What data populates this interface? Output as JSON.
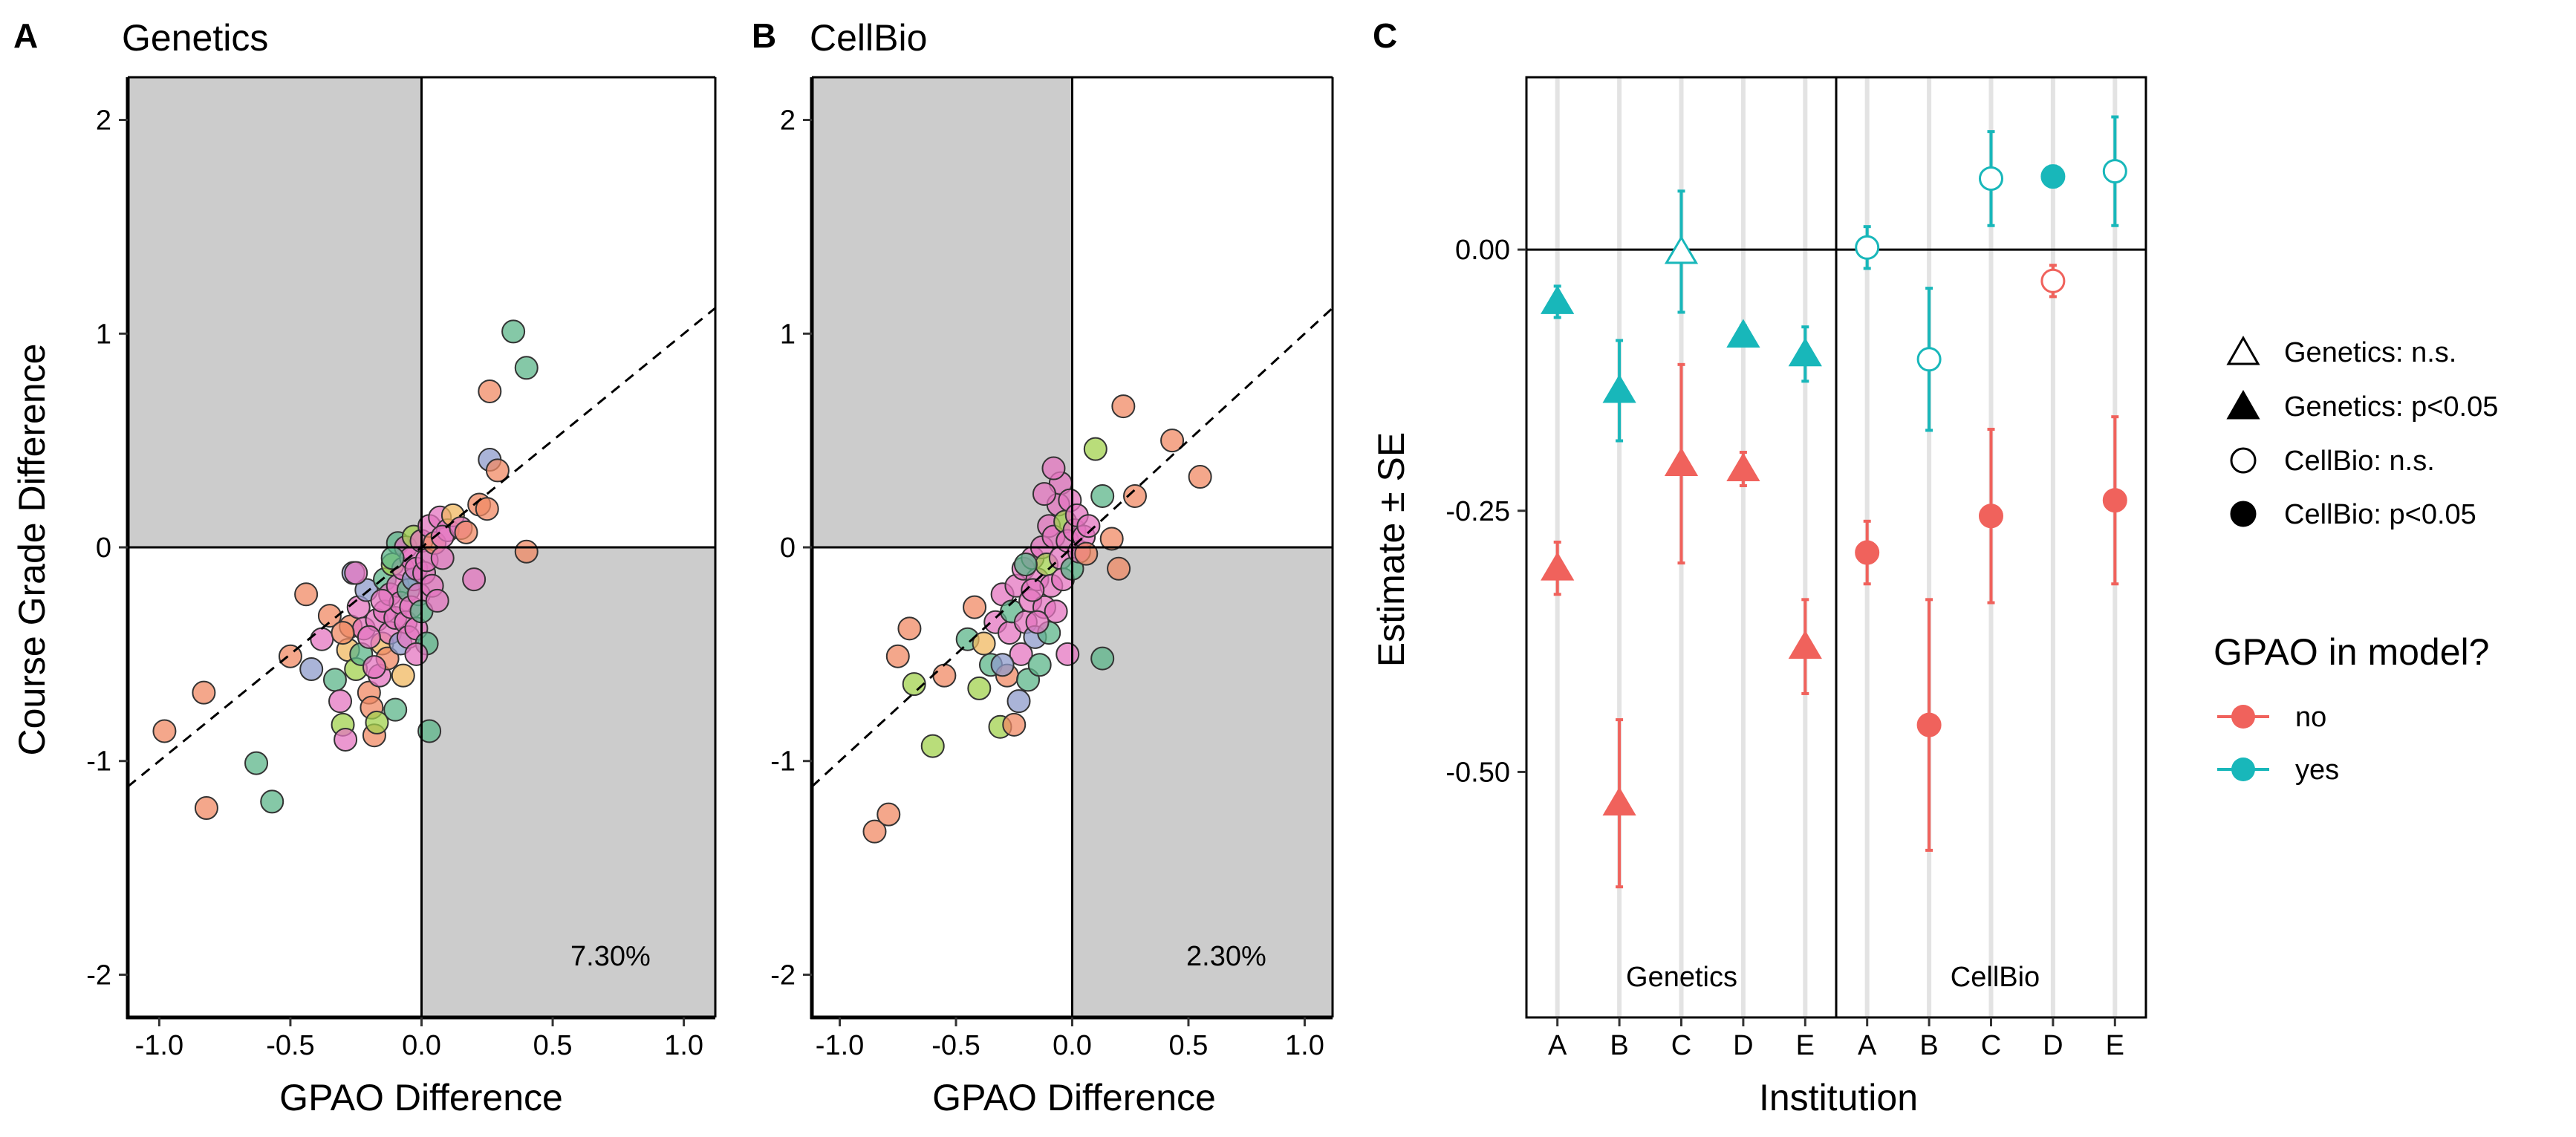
{
  "colors": {
    "no": "#F0625C",
    "yes": "#18B7BA",
    "quadrant_fill": "#CCCCCC",
    "gridline": "#E3E3E3",
    "point_palette": [
      "#F08A64",
      "#5CB68A",
      "#8E9BCB",
      "#E476C0",
      "#A2D14E",
      "#F0B860"
    ]
  },
  "chart_data": [
    {
      "type": "scatter",
      "panel_letter": "A",
      "title": "Genetics",
      "xlabel": "GPAO Difference",
      "ylabel": "Course Grade Difference",
      "xlim": [
        -1.12,
        1.12
      ],
      "ylim": [
        -2.2,
        2.2
      ],
      "x_ticks": [
        -1.0,
        -0.5,
        0.0,
        0.5,
        1.0
      ],
      "x_tick_labels": [
        "-1.0",
        "-0.5",
        "0.0",
        "0.5",
        "1.0"
      ],
      "y_ticks": [
        -2,
        -1,
        0,
        1,
        2
      ],
      "y_tick_labels": [
        "-2",
        "-1",
        "0",
        "1",
        "2"
      ],
      "shaded_quadrants": [
        "upper-left",
        "lower-right"
      ],
      "reference_line": {
        "slope": 1,
        "intercept": 0,
        "style": "dashed"
      },
      "annotation": "7.30%",
      "points": [
        {
          "x": -0.98,
          "y": -0.86,
          "g": 0
        },
        {
          "x": -0.83,
          "y": -0.68,
          "g": 0
        },
        {
          "x": -0.82,
          "y": -1.22,
          "g": 0
        },
        {
          "x": -0.63,
          "y": -1.01,
          "g": 1
        },
        {
          "x": -0.57,
          "y": -1.19,
          "g": 1
        },
        {
          "x": -0.5,
          "y": -0.51,
          "g": 0
        },
        {
          "x": -0.44,
          "y": -0.22,
          "g": 0
        },
        {
          "x": -0.42,
          "y": -0.57,
          "g": 2
        },
        {
          "x": -0.38,
          "y": -0.43,
          "g": 3
        },
        {
          "x": -0.35,
          "y": -0.32,
          "g": 0
        },
        {
          "x": -0.33,
          "y": -0.62,
          "g": 1
        },
        {
          "x": -0.31,
          "y": -0.72,
          "g": 3
        },
        {
          "x": -0.3,
          "y": -0.83,
          "g": 4
        },
        {
          "x": -0.29,
          "y": -0.9,
          "g": 3
        },
        {
          "x": -0.28,
          "y": -0.48,
          "g": 5
        },
        {
          "x": -0.27,
          "y": -0.37,
          "g": 0
        },
        {
          "x": -0.26,
          "y": -0.12,
          "g": 2
        },
        {
          "x": -0.25,
          "y": -0.57,
          "g": 4
        },
        {
          "x": -0.24,
          "y": -0.28,
          "g": 3
        },
        {
          "x": -0.23,
          "y": -0.5,
          "g": 1
        },
        {
          "x": -0.22,
          "y": -0.38,
          "g": 3
        },
        {
          "x": -0.21,
          "y": -0.2,
          "g": 2
        },
        {
          "x": -0.2,
          "y": -0.68,
          "g": 0
        },
        {
          "x": -0.19,
          "y": -0.75,
          "g": 0
        },
        {
          "x": -0.18,
          "y": -0.88,
          "g": 0
        },
        {
          "x": -0.17,
          "y": -0.82,
          "g": 4
        },
        {
          "x": -0.17,
          "y": -0.34,
          "g": 3
        },
        {
          "x": -0.16,
          "y": -0.6,
          "g": 3
        },
        {
          "x": -0.15,
          "y": -0.45,
          "g": 5
        },
        {
          "x": -0.14,
          "y": -0.3,
          "g": 3
        },
        {
          "x": -0.14,
          "y": -0.15,
          "g": 1
        },
        {
          "x": -0.13,
          "y": -0.52,
          "g": 0
        },
        {
          "x": -0.12,
          "y": -0.4,
          "g": 3
        },
        {
          "x": -0.12,
          "y": -0.22,
          "g": 3
        },
        {
          "x": -0.11,
          "y": -0.08,
          "g": 4
        },
        {
          "x": -0.1,
          "y": -0.76,
          "g": 1
        },
        {
          "x": -0.1,
          "y": -0.33,
          "g": 3
        },
        {
          "x": -0.09,
          "y": -0.18,
          "g": 3
        },
        {
          "x": -0.09,
          "y": 0.02,
          "g": 1
        },
        {
          "x": -0.08,
          "y": -0.45,
          "g": 2
        },
        {
          "x": -0.08,
          "y": -0.26,
          "g": 3
        },
        {
          "x": -0.07,
          "y": -0.1,
          "g": 3
        },
        {
          "x": -0.07,
          "y": -0.6,
          "g": 5
        },
        {
          "x": -0.06,
          "y": -0.35,
          "g": 3
        },
        {
          "x": -0.06,
          "y": 0.0,
          "g": 3
        },
        {
          "x": -0.05,
          "y": -0.2,
          "g": 1
        },
        {
          "x": -0.05,
          "y": -0.42,
          "g": 3
        },
        {
          "x": -0.04,
          "y": -0.05,
          "g": 3
        },
        {
          "x": -0.04,
          "y": -0.28,
          "g": 3
        },
        {
          "x": -0.03,
          "y": -0.15,
          "g": 2
        },
        {
          "x": -0.03,
          "y": 0.05,
          "g": 4
        },
        {
          "x": -0.02,
          "y": -0.38,
          "g": 3
        },
        {
          "x": -0.02,
          "y": -0.1,
          "g": 3
        },
        {
          "x": -0.01,
          "y": -0.22,
          "g": 3
        },
        {
          "x": 0.0,
          "y": 0.03,
          "g": 3
        },
        {
          "x": 0.0,
          "y": -0.3,
          "g": 1
        },
        {
          "x": 0.01,
          "y": -0.12,
          "g": 3
        },
        {
          "x": 0.02,
          "y": -0.45,
          "g": 1
        },
        {
          "x": 0.02,
          "y": -0.06,
          "g": 3
        },
        {
          "x": 0.03,
          "y": -0.86,
          "g": 1
        },
        {
          "x": 0.03,
          "y": 0.1,
          "g": 3
        },
        {
          "x": 0.04,
          "y": -0.18,
          "g": 3
        },
        {
          "x": 0.05,
          "y": 0.02,
          "g": 0
        },
        {
          "x": 0.06,
          "y": -0.25,
          "g": 3
        },
        {
          "x": 0.07,
          "y": 0.14,
          "g": 3
        },
        {
          "x": 0.08,
          "y": -0.05,
          "g": 3
        },
        {
          "x": 0.1,
          "y": 0.08,
          "g": 3
        },
        {
          "x": 0.12,
          "y": 0.15,
          "g": 5
        },
        {
          "x": -0.02,
          "y": -0.5,
          "g": 3
        },
        {
          "x": -0.15,
          "y": -0.25,
          "g": 3
        },
        {
          "x": -0.11,
          "y": -0.05,
          "g": 1
        },
        {
          "x": -0.2,
          "y": -0.42,
          "g": 3
        },
        {
          "x": -0.18,
          "y": -0.56,
          "g": 3
        },
        {
          "x": 0.08,
          "y": 0.05,
          "g": 3
        },
        {
          "x": 0.15,
          "y": 0.09,
          "g": 3
        },
        {
          "x": 0.17,
          "y": 0.07,
          "g": 0
        },
        {
          "x": 0.2,
          "y": -0.15,
          "g": 3
        },
        {
          "x": 0.22,
          "y": 0.2,
          "g": 0
        },
        {
          "x": 0.25,
          "y": 0.18,
          "g": 0
        },
        {
          "x": 0.26,
          "y": 0.41,
          "g": 2
        },
        {
          "x": 0.26,
          "y": 0.73,
          "g": 0
        },
        {
          "x": 0.29,
          "y": 0.36,
          "g": 0
        },
        {
          "x": 0.35,
          "y": 1.01,
          "g": 1
        },
        {
          "x": 0.4,
          "y": 0.84,
          "g": 1
        },
        {
          "x": 0.4,
          "y": -0.02,
          "g": 0
        },
        {
          "x": -0.25,
          "y": -0.12,
          "g": 3
        },
        {
          "x": -0.3,
          "y": -0.4,
          "g": 0
        }
      ]
    },
    {
      "type": "scatter",
      "panel_letter": "B",
      "title": "CellBio",
      "xlabel": "GPAO Difference",
      "ylabel": "",
      "xlim": [
        -1.12,
        1.12
      ],
      "ylim": [
        -2.2,
        2.2
      ],
      "x_ticks": [
        -1.0,
        -0.5,
        0.0,
        0.5,
        1.0
      ],
      "x_tick_labels": [
        "-1.0",
        "-0.5",
        "0.0",
        "0.5",
        "1.0"
      ],
      "y_ticks": [
        -2,
        -1,
        0,
        1,
        2
      ],
      "y_tick_labels": [
        "-2",
        "-1",
        "0",
        "1",
        "2"
      ],
      "shaded_quadrants": [
        "upper-left",
        "lower-right"
      ],
      "reference_line": {
        "slope": 1,
        "intercept": 0,
        "style": "dashed"
      },
      "annotation": "2.30%",
      "points": [
        {
          "x": -0.85,
          "y": -1.33,
          "g": 0
        },
        {
          "x": -0.79,
          "y": -1.25,
          "g": 0
        },
        {
          "x": -0.75,
          "y": -0.51,
          "g": 0
        },
        {
          "x": -0.7,
          "y": -0.38,
          "g": 0
        },
        {
          "x": -0.68,
          "y": -0.64,
          "g": 4
        },
        {
          "x": -0.6,
          "y": -0.93,
          "g": 4
        },
        {
          "x": -0.55,
          "y": -0.6,
          "g": 0
        },
        {
          "x": -0.45,
          "y": -0.43,
          "g": 1
        },
        {
          "x": -0.42,
          "y": -0.28,
          "g": 0
        },
        {
          "x": -0.4,
          "y": -0.66,
          "g": 4
        },
        {
          "x": -0.38,
          "y": -0.45,
          "g": 5
        },
        {
          "x": -0.35,
          "y": -0.55,
          "g": 1
        },
        {
          "x": -0.33,
          "y": -0.35,
          "g": 3
        },
        {
          "x": -0.31,
          "y": -0.84,
          "g": 4
        },
        {
          "x": -0.3,
          "y": -0.22,
          "g": 3
        },
        {
          "x": -0.28,
          "y": -0.6,
          "g": 0
        },
        {
          "x": -0.27,
          "y": -0.4,
          "g": 3
        },
        {
          "x": -0.26,
          "y": -0.3,
          "g": 1
        },
        {
          "x": -0.25,
          "y": -0.83,
          "g": 0
        },
        {
          "x": -0.24,
          "y": -0.18,
          "g": 3
        },
        {
          "x": -0.23,
          "y": -0.72,
          "g": 2
        },
        {
          "x": -0.22,
          "y": -0.5,
          "g": 3
        },
        {
          "x": -0.21,
          "y": -0.1,
          "g": 3
        },
        {
          "x": -0.2,
          "y": -0.35,
          "g": 3
        },
        {
          "x": -0.19,
          "y": -0.62,
          "g": 1
        },
        {
          "x": -0.18,
          "y": -0.25,
          "g": 3
        },
        {
          "x": -0.17,
          "y": -0.05,
          "g": 3
        },
        {
          "x": -0.16,
          "y": -0.42,
          "g": 2
        },
        {
          "x": -0.15,
          "y": -0.15,
          "g": 3
        },
        {
          "x": -0.14,
          "y": -0.55,
          "g": 1
        },
        {
          "x": -0.13,
          "y": 0.0,
          "g": 3
        },
        {
          "x": -0.12,
          "y": -0.28,
          "g": 3
        },
        {
          "x": -0.11,
          "y": -0.08,
          "g": 4
        },
        {
          "x": -0.1,
          "y": 0.1,
          "g": 3
        },
        {
          "x": -0.1,
          "y": -0.4,
          "g": 1
        },
        {
          "x": -0.09,
          "y": -0.18,
          "g": 3
        },
        {
          "x": -0.08,
          "y": 0.05,
          "g": 3
        },
        {
          "x": -0.07,
          "y": -0.3,
          "g": 3
        },
        {
          "x": -0.06,
          "y": 0.2,
          "g": 3
        },
        {
          "x": -0.05,
          "y": -0.05,
          "g": 3
        },
        {
          "x": -0.05,
          "y": 0.3,
          "g": 3
        },
        {
          "x": -0.04,
          "y": -0.15,
          "g": 3
        },
        {
          "x": -0.03,
          "y": 0.12,
          "g": 4
        },
        {
          "x": -0.02,
          "y": -0.5,
          "g": 3
        },
        {
          "x": -0.02,
          "y": 0.03,
          "g": 3
        },
        {
          "x": -0.01,
          "y": 0.22,
          "g": 3
        },
        {
          "x": 0.0,
          "y": -0.1,
          "g": 1
        },
        {
          "x": 0.01,
          "y": 0.08,
          "g": 3
        },
        {
          "x": 0.02,
          "y": 0.15,
          "g": 3
        },
        {
          "x": 0.03,
          "y": -0.02,
          "g": 3
        },
        {
          "x": 0.05,
          "y": 0.05,
          "g": 3
        },
        {
          "x": 0.06,
          "y": -0.03,
          "g": 0
        },
        {
          "x": 0.07,
          "y": 0.1,
          "g": 3
        },
        {
          "x": -0.08,
          "y": 0.37,
          "g": 3
        },
        {
          "x": -0.12,
          "y": 0.25,
          "g": 3
        },
        {
          "x": -0.17,
          "y": -0.2,
          "g": 3
        },
        {
          "x": -0.2,
          "y": -0.08,
          "g": 1
        },
        {
          "x": 0.1,
          "y": 0.46,
          "g": 4
        },
        {
          "x": 0.13,
          "y": 0.24,
          "g": 1
        },
        {
          "x": 0.13,
          "y": -0.52,
          "g": 1
        },
        {
          "x": 0.17,
          "y": 0.04,
          "g": 0
        },
        {
          "x": 0.2,
          "y": -0.1,
          "g": 0
        },
        {
          "x": 0.22,
          "y": 0.66,
          "g": 0
        },
        {
          "x": 0.27,
          "y": 0.24,
          "g": 0
        },
        {
          "x": 0.43,
          "y": 0.5,
          "g": 0
        },
        {
          "x": 0.55,
          "y": 0.33,
          "g": 0
        },
        {
          "x": -0.3,
          "y": -0.55,
          "g": 2
        },
        {
          "x": -0.15,
          "y": -0.35,
          "g": 3
        }
      ]
    },
    {
      "type": "scatter",
      "panel_letter": "C",
      "title": "",
      "xlabel": "Institution",
      "ylabel": "Estimate ± SE",
      "ylim": [
        -0.735,
        0.165
      ],
      "y_ticks": [
        0.0,
        -0.25,
        -0.5
      ],
      "y_tick_labels": [
        "0.00",
        "-0.25",
        "-0.50"
      ],
      "facets": [
        "Genetics",
        "CellBio"
      ],
      "institutions": [
        "A",
        "B",
        "C",
        "D",
        "E"
      ],
      "points": [
        {
          "facet": "Genetics",
          "inst": "A",
          "gpao": "no",
          "est": -0.305,
          "se": 0.025,
          "sig": true
        },
        {
          "facet": "Genetics",
          "inst": "A",
          "gpao": "yes",
          "est": -0.05,
          "se": 0.015,
          "sig": true
        },
        {
          "facet": "Genetics",
          "inst": "B",
          "gpao": "no",
          "est": -0.53,
          "se": 0.08,
          "sig": true
        },
        {
          "facet": "Genetics",
          "inst": "B",
          "gpao": "yes",
          "est": -0.135,
          "se": 0.048,
          "sig": true
        },
        {
          "facet": "Genetics",
          "inst": "C",
          "gpao": "no",
          "est": -0.205,
          "se": 0.095,
          "sig": true
        },
        {
          "facet": "Genetics",
          "inst": "C",
          "gpao": "yes",
          "est": -0.002,
          "se": 0.058,
          "sig": false
        },
        {
          "facet": "Genetics",
          "inst": "D",
          "gpao": "no",
          "est": -0.21,
          "se": 0.016,
          "sig": true
        },
        {
          "facet": "Genetics",
          "inst": "D",
          "gpao": "yes",
          "est": -0.082,
          "se": 0.009,
          "sig": true
        },
        {
          "facet": "Genetics",
          "inst": "E",
          "gpao": "no",
          "est": -0.38,
          "se": 0.045,
          "sig": true
        },
        {
          "facet": "Genetics",
          "inst": "E",
          "gpao": "yes",
          "est": -0.1,
          "se": 0.026,
          "sig": true
        },
        {
          "facet": "CellBio",
          "inst": "A",
          "gpao": "no",
          "est": -0.29,
          "se": 0.03,
          "sig": true
        },
        {
          "facet": "CellBio",
          "inst": "A",
          "gpao": "yes",
          "est": 0.002,
          "se": 0.02,
          "sig": false
        },
        {
          "facet": "CellBio",
          "inst": "B",
          "gpao": "no",
          "est": -0.455,
          "se": 0.12,
          "sig": true
        },
        {
          "facet": "CellBio",
          "inst": "B",
          "gpao": "yes",
          "est": -0.105,
          "se": 0.068,
          "sig": false
        },
        {
          "facet": "CellBio",
          "inst": "C",
          "gpao": "no",
          "est": -0.255,
          "se": 0.083,
          "sig": true
        },
        {
          "facet": "CellBio",
          "inst": "C",
          "gpao": "yes",
          "est": 0.068,
          "se": 0.045,
          "sig": false
        },
        {
          "facet": "CellBio",
          "inst": "D",
          "gpao": "no",
          "est": -0.03,
          "se": 0.015,
          "sig": false
        },
        {
          "facet": "CellBio",
          "inst": "D",
          "gpao": "yes",
          "est": 0.07,
          "se": 0.01,
          "sig": true
        },
        {
          "facet": "CellBio",
          "inst": "E",
          "gpao": "no",
          "est": -0.24,
          "se": 0.08,
          "sig": true
        },
        {
          "facet": "CellBio",
          "inst": "E",
          "gpao": "yes",
          "est": 0.075,
          "se": 0.052,
          "sig": false
        }
      ],
      "shape_legend": [
        {
          "label": "Genetics: n.s.",
          "shape": "triangle",
          "filled": false
        },
        {
          "label": "Genetics: p<0.05",
          "shape": "triangle",
          "filled": true
        },
        {
          "label": "CellBio: n.s.",
          "shape": "circle",
          "filled": false
        },
        {
          "label": "CellBio: p<0.05",
          "shape": "circle",
          "filled": true
        }
      ],
      "color_legend": {
        "title": "GPAO in model?",
        "entries": [
          {
            "label": "no",
            "color": "#F0625C"
          },
          {
            "label": "yes",
            "color": "#18B7BA"
          }
        ]
      }
    }
  ]
}
